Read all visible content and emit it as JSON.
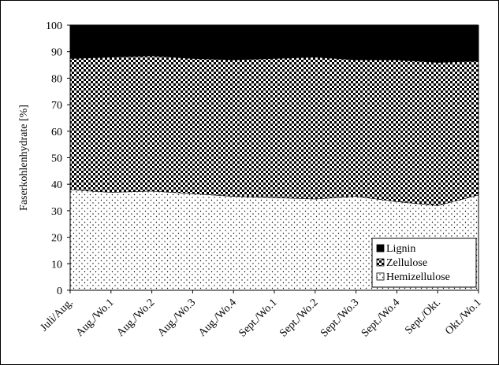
{
  "chart_data": {
    "type": "area",
    "stacked": true,
    "title": "",
    "xlabel": "",
    "ylabel": "Faserkohlenhydrate [%]",
    "ylim": [
      0,
      100
    ],
    "yticks": [
      0,
      10,
      20,
      30,
      40,
      50,
      60,
      70,
      80,
      90,
      100
    ],
    "categories": [
      "Juli/Aug.",
      "Aug./Wo.1",
      "Aug./Wo.2",
      "Aug./Wo.3",
      "Aug./Wo.4",
      "Sept./Wo.1",
      "Sept./Wo.2",
      "Sept./Wo.3",
      "Sept./Wo.4",
      "Sept./Okt.",
      "Okt./Wo.1"
    ],
    "series": [
      {
        "name": "Hemizellulose",
        "pattern": "dots",
        "values": [
          38,
          37,
          37.5,
          36.5,
          35.5,
          35,
          34.5,
          35.5,
          33.5,
          32,
          36
        ]
      },
      {
        "name": "Zellulose",
        "pattern": "checker",
        "values": [
          49.5,
          51,
          51,
          51,
          51.5,
          52.5,
          53.5,
          51.5,
          53.5,
          54,
          50.5
        ]
      },
      {
        "name": "Lignin",
        "pattern": "solid",
        "values": [
          12.5,
          12,
          11.5,
          12.5,
          13,
          12.5,
          12,
          13,
          13,
          14,
          13.5
        ]
      }
    ],
    "legend": {
      "position": "bottom-right",
      "order": [
        "Lignin",
        "Zellulose",
        "Hemizellulose"
      ]
    },
    "colors": {
      "ink": "#000000",
      "paper": "#ffffff"
    },
    "grid": false
  }
}
